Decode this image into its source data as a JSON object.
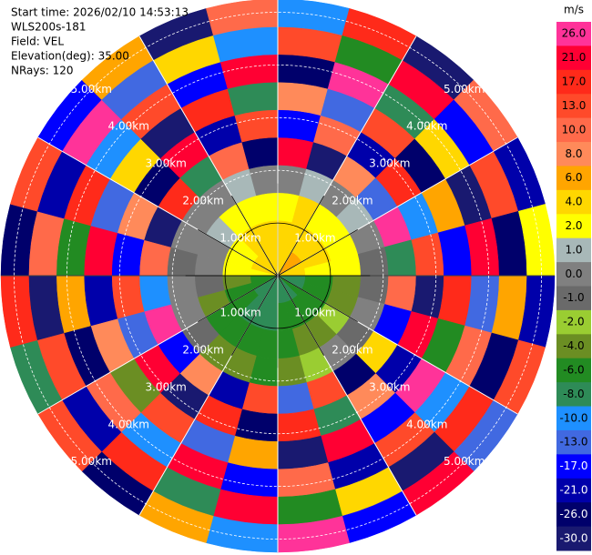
{
  "chart_data": {
    "type": "polar",
    "header": [
      "Start time: 2026/02/10 14:53:13",
      "WLS200s-181",
      "Field: VEL",
      "Elevation(deg): 35.00",
      "NRays: 120"
    ],
    "rlim": [
      0,
      5.25
    ],
    "range_rings": [
      {
        "value": 1,
        "label": "1.00km"
      },
      {
        "value": 2,
        "label": "2.00km"
      },
      {
        "value": 3,
        "label": "3.00km"
      },
      {
        "value": 4,
        "label": "4.00km"
      },
      {
        "value": 5,
        "label": "5.00km"
      }
    ],
    "values": [
      [
        5,
        4,
        3,
        0,
        21,
        -17,
        8,
        -26,
        13,
        -10
      ],
      [
        5,
        4,
        4,
        1,
        -30,
        12,
        -13,
        26,
        -6,
        17
      ],
      [
        6,
        5,
        3,
        0,
        9,
        -21,
        15,
        -8,
        24,
        -30
      ],
      [
        6,
        4,
        3,
        1,
        -13,
        19,
        -26,
        4,
        -17,
        10
      ],
      [
        5,
        4,
        2,
        0,
        26,
        -10,
        6,
        -30,
        13,
        -21
      ],
      [
        5,
        3,
        2,
        -1,
        -8,
        14,
        -17,
        22,
        -26,
        3
      ],
      [
        -7,
        -5,
        -3,
        -1,
        11,
        -30,
        18,
        -13,
        7,
        -21
      ],
      [
        -7,
        -5,
        -3,
        0,
        -17,
        24,
        -6,
        12,
        -26,
        15
      ],
      [
        -6,
        -5,
        -2,
        -1,
        4,
        -21,
        26,
        -10,
        19,
        -13
      ],
      [
        -7,
        -6,
        -3,
        0,
        -26,
        9,
        -17,
        14,
        -30,
        21
      ],
      [
        -7,
        -6,
        -4,
        -2,
        16,
        -8,
        23,
        -21,
        5,
        -17
      ],
      [
        -8,
        -6,
        -5,
        -3,
        -13,
        20,
        -30,
        10,
        -6,
        26
      ],
      [
        -8,
        -7,
        -6,
        -5,
        13,
        -26,
        7,
        -17,
        22,
        -10
      ],
      [
        -8,
        -7,
        -6,
        -3,
        -21,
        17,
        -13,
        25,
        -8,
        6
      ],
      [
        -7,
        -7,
        -6,
        -4,
        8,
        -30,
        14,
        -10,
        18,
        -26
      ],
      [
        -7,
        -6,
        -5,
        -1,
        -17,
        23,
        -4,
        11,
        -21,
        13
      ],
      [
        -6,
        -5,
        -4,
        0,
        26,
        -13,
        9,
        -26,
        15,
        -8
      ],
      [
        -5,
        -3,
        -1,
        0,
        -10,
        16,
        -21,
        6,
        -30,
        20
      ],
      [
        3,
        2,
        0,
        -1,
        12,
        -17,
        24,
        -6,
        10,
        -26
      ],
      [
        4,
        3,
        0,
        0,
        -30,
        8,
        -13,
        19,
        -21,
        14
      ],
      [
        5,
        3,
        1,
        0,
        17,
        -26,
        5,
        -10,
        26,
        -17
      ],
      [
        5,
        4,
        3,
        0,
        -8,
        21,
        -30,
        13,
        -13,
        7
      ],
      [
        5,
        4,
        3,
        1,
        10,
        -21,
        18,
        -17,
        4,
        -30
      ],
      [
        5,
        4,
        3,
        0,
        -26,
        15,
        -8,
        22,
        -10,
        11
      ]
    ],
    "colorbar": {
      "unit": "m/s",
      "ticks": [
        {
          "value": 26,
          "label": "26.0"
        },
        {
          "value": 21,
          "label": "21.0"
        },
        {
          "value": 17,
          "label": "17.0"
        },
        {
          "value": 13,
          "label": "13.0"
        },
        {
          "value": 10,
          "label": "10.0"
        },
        {
          "value": 8,
          "label": "8.0"
        },
        {
          "value": 6,
          "label": "6.0"
        },
        {
          "value": 4,
          "label": "4.0"
        },
        {
          "value": 2,
          "label": "2.0"
        },
        {
          "value": 1,
          "label": "1.0"
        },
        {
          "value": 0,
          "label": "0.0"
        },
        {
          "value": -1,
          "label": "-1.0"
        },
        {
          "value": -2,
          "label": "-2.0"
        },
        {
          "value": -4,
          "label": "-4.0"
        },
        {
          "value": -6,
          "label": "-6.0"
        },
        {
          "value": -8,
          "label": "-8.0"
        },
        {
          "value": -10,
          "label": "-10.0"
        },
        {
          "value": -13,
          "label": "-13.0"
        },
        {
          "value": -17,
          "label": "-17.0"
        },
        {
          "value": -21,
          "label": "-21.0"
        },
        {
          "value": -26,
          "label": "-26.0"
        },
        {
          "value": -30,
          "label": "-30.0"
        }
      ],
      "colors": [
        "#ff3399",
        "#ff0033",
        "#ff2a1a",
        "#ff4a2a",
        "#ff6a4a",
        "#ff8a5a",
        "#ffa500",
        "#ffd700",
        "#ffff00",
        "#a8b8b8",
        "#808080",
        "#6a6a6a",
        "#9acd32",
        "#6b8e23",
        "#228b22",
        "#2e8b57",
        "#1e90ff",
        "#4169e1",
        "#0000ff",
        "#0000aa",
        "#00006b",
        "#191970"
      ]
    }
  }
}
